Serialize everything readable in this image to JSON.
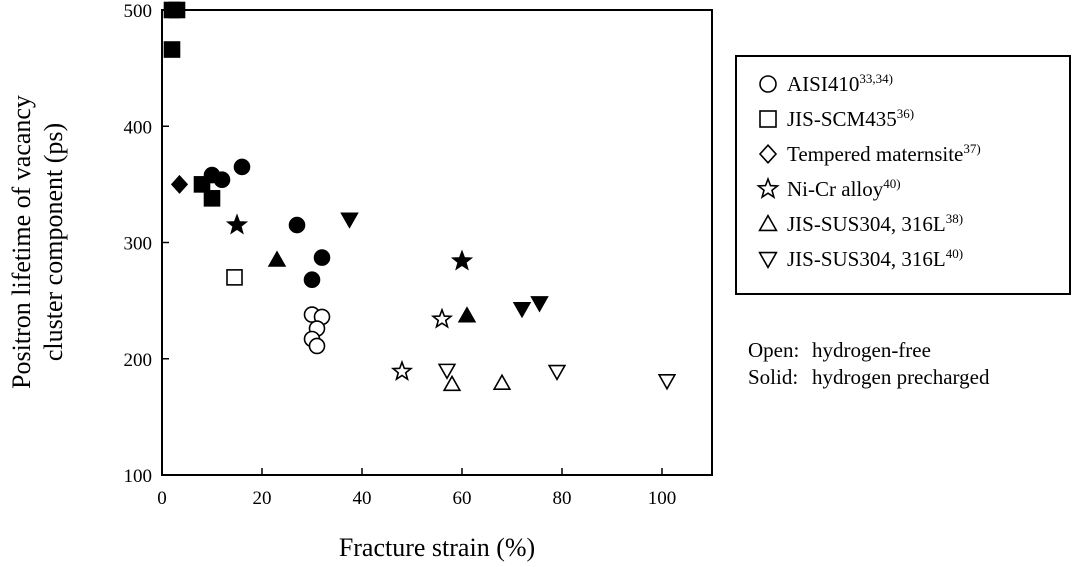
{
  "chart_data": {
    "type": "scatter",
    "xlabel": "Fracture strain (%)",
    "ylabel_line1": "Positron lifetime  of vacancy",
    "ylabel_line2": "cluster component (ps)",
    "xlim": [
      0,
      110
    ],
    "ylim": [
      100,
      500
    ],
    "x_ticks": [
      0,
      20,
      40,
      60,
      80,
      100
    ],
    "y_ticks": [
      100,
      200,
      300,
      400,
      500
    ],
    "grid": false,
    "legend_position": "right",
    "series": [
      {
        "name": "AISI410",
        "sup": "33,34)",
        "marker": "circle",
        "open": [
          [
            30,
            238
          ],
          [
            32,
            236
          ],
          [
            31,
            226
          ],
          [
            30,
            217
          ],
          [
            31,
            211
          ]
        ],
        "solid": [
          [
            10,
            358
          ],
          [
            12,
            354
          ],
          [
            16,
            365
          ],
          [
            27,
            315
          ],
          [
            30,
            268
          ],
          [
            32,
            287
          ]
        ]
      },
      {
        "name": "JIS-SCM435",
        "sup": "36)",
        "marker": "square",
        "open": [
          [
            14.5,
            270
          ]
        ],
        "solid": [
          [
            2,
            500
          ],
          [
            3,
            500
          ],
          [
            2,
            466
          ],
          [
            8,
            350
          ],
          [
            10,
            338
          ]
        ]
      },
      {
        "name": "Tempered maternsite",
        "sup": "37)",
        "marker": "diamond",
        "open": [],
        "solid": [
          [
            3.5,
            350
          ]
        ]
      },
      {
        "name": "Ni-Cr alloy",
        "sup": "40)",
        "marker": "star",
        "open": [
          [
            48,
            189
          ],
          [
            56,
            234
          ]
        ],
        "solid": [
          [
            15,
            315
          ],
          [
            60,
            284
          ]
        ]
      },
      {
        "name": "JIS-SUS304, 316L",
        "sup": "38)",
        "marker": "triangle-up",
        "open": [
          [
            58,
            178
          ],
          [
            68,
            179
          ]
        ],
        "solid": [
          [
            23,
            285
          ],
          [
            61,
            237
          ]
        ]
      },
      {
        "name": "JIS-SUS304, 316L",
        "sup": "40)",
        "marker": "triangle-down",
        "open": [
          [
            57,
            190
          ],
          [
            79,
            189
          ],
          [
            101,
            181
          ]
        ],
        "solid": [
          [
            37.5,
            320
          ],
          [
            72,
            243
          ],
          [
            75.5,
            248
          ]
        ]
      }
    ],
    "notes": [
      {
        "label": "Open:",
        "text": "hydrogen-free"
      },
      {
        "label": "Solid:",
        "text": "hydrogen precharged"
      }
    ]
  }
}
